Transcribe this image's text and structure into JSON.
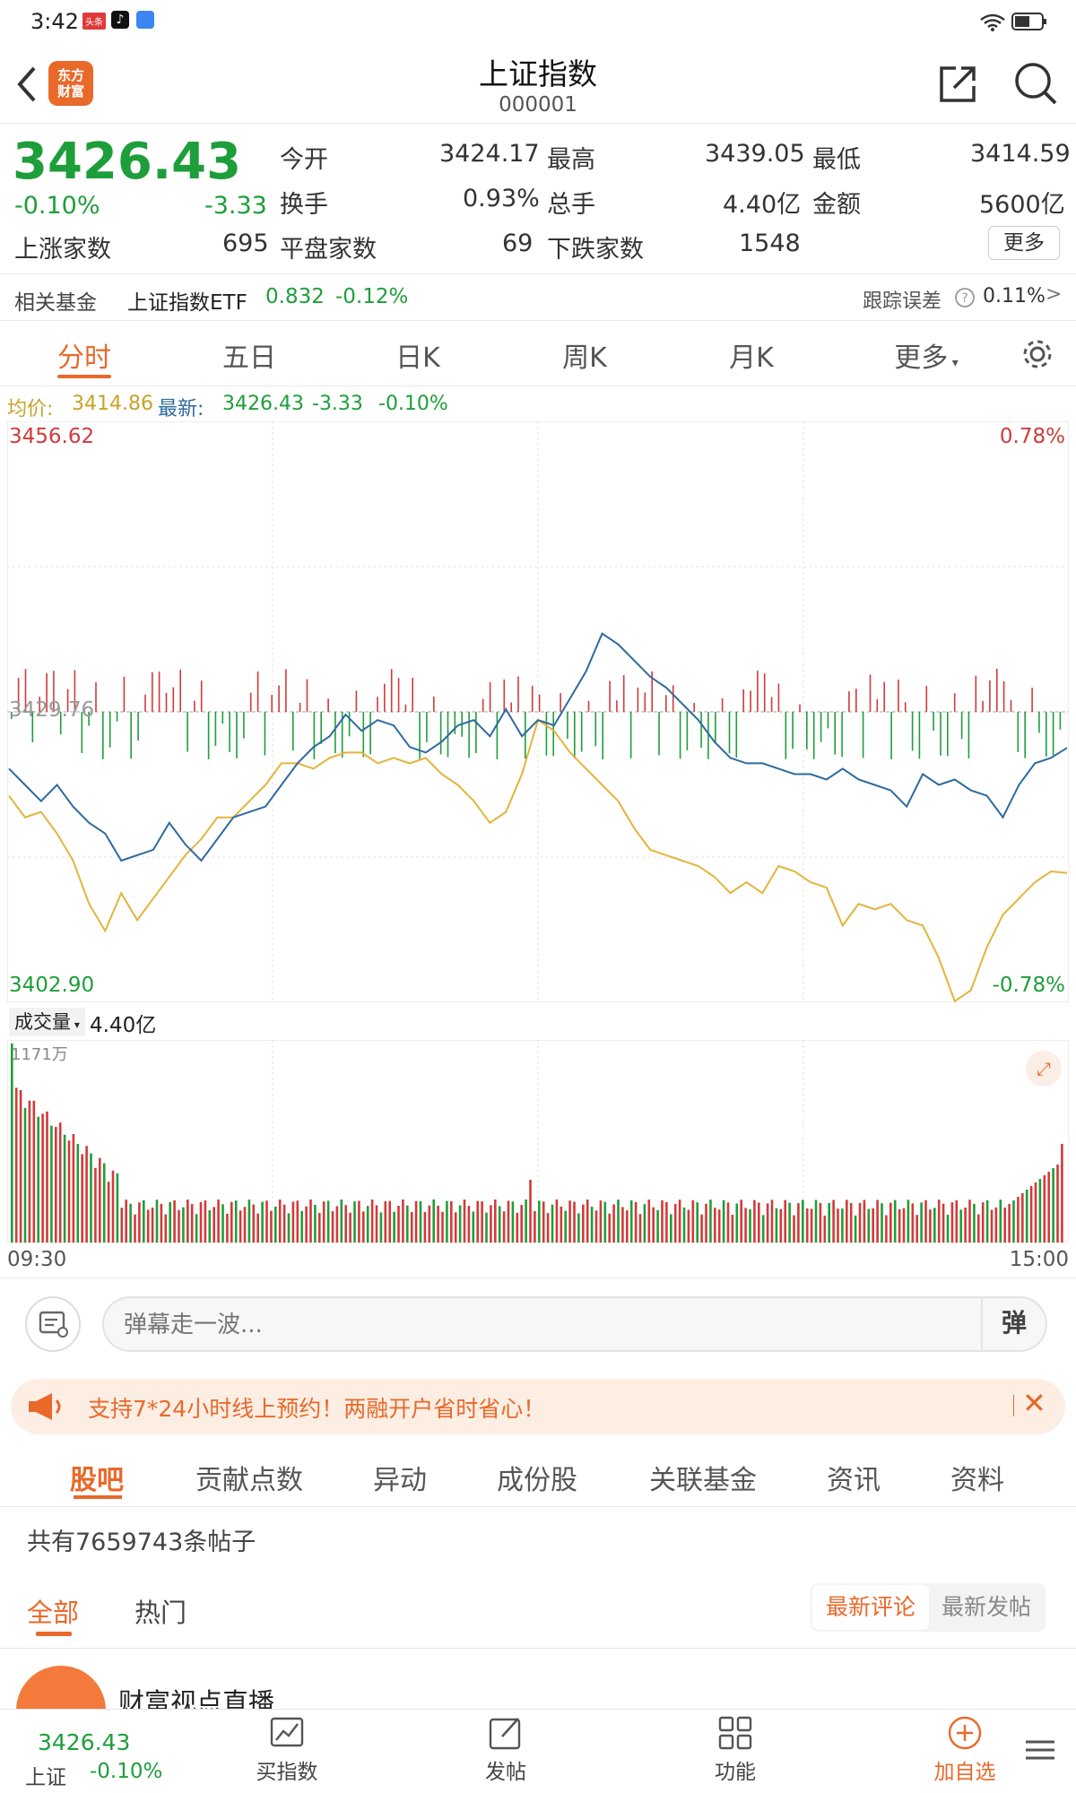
{
  "status_bar": {
    "time": "3:42",
    "app_badge": "头条"
  },
  "header": {
    "logo_text": "东方\n财富",
    "title": "上证指数",
    "code": "000001"
  },
  "quote": {
    "price": "3426.43",
    "pct": "-0.10%",
    "change": "-3.33",
    "open_label": "今开",
    "open": "3424.17",
    "high_label": "最高",
    "high": "3439.05",
    "low_label": "最低",
    "low": "3414.59",
    "turnover_label": "换手",
    "turnover": "0.93%",
    "volume_label": "总手",
    "volume": "4.40亿",
    "amount_label": "金额",
    "amount": "5600亿",
    "up_label": "上涨家数",
    "up": "695",
    "flat_label": "平盘家数",
    "flat": "69",
    "down_label": "下跌家数",
    "down": "1548",
    "more": "更多"
  },
  "fund": {
    "label": "相关基金",
    "name": "上证指数ETF",
    "price": "0.832",
    "pct": "-0.12%",
    "track_label": "跟踪误差",
    "track": "0.11%"
  },
  "tabs": [
    "分时",
    "五日",
    "日K",
    "周K",
    "月K",
    "更多"
  ],
  "legend": {
    "avg_label": "均价:",
    "avg": "3414.86",
    "last_label": "最新:",
    "last": "3426.43",
    "chg": "-3.33",
    "pct": "-0.10%"
  },
  "axis": {
    "ymax": "3456.62",
    "ymin": "3402.90",
    "ymid": "3429.76",
    "pmax": "0.78%",
    "pmin": "-0.78%",
    "t_start": "09:30",
    "t_end": "15:00"
  },
  "vol": {
    "label": "成交量",
    "total": "4.40亿",
    "max": "1171万"
  },
  "danmu": {
    "placeholder": "弹幕走一波...",
    "send": "弹"
  },
  "ad": {
    "text": "支持7*24小时线上预约！两融开户省时省心！"
  },
  "lower_tabs": [
    "股吧",
    "贡献点数",
    "异动",
    "成份股",
    "关联基金",
    "资讯",
    "资料"
  ],
  "posts": {
    "count_text": "共有7659743条帖子",
    "filter_all": "全部",
    "filter_hot": "热门",
    "sort_reply": "最新评论",
    "sort_new": "最新发帖",
    "item_name": "财富视点直播"
  },
  "bottom": {
    "price": "3426.43",
    "name": "上证",
    "pct": "-0.10%",
    "buy": "买指数",
    "post": "发帖",
    "func": "功能",
    "add": "加自选"
  },
  "colors": {
    "up": "#d23a3a",
    "down": "#1e9e3a",
    "accent": "#e8692a",
    "price_line": "#2d6a9f",
    "avg_line": "#e3b43a"
  },
  "chart_data": {
    "type": "line",
    "x_start": "09:30",
    "x_end": "15:00",
    "ylim": [
      3402.9,
      3456.62
    ],
    "series": [
      {
        "name": "最新",
        "values": [
          3424.5,
          3423.0,
          3421.5,
          3423.0,
          3421.0,
          3419.5,
          3418.5,
          3416.0,
          3416.5,
          3417.0,
          3419.5,
          3417.5,
          3416.0,
          3418.0,
          3420.0,
          3420.5,
          3421.0,
          3423.0,
          3425.0,
          3426.5,
          3427.5,
          3429.5,
          3428.0,
          3429.0,
          3428.5,
          3426.5,
          3426.0,
          3427.0,
          3428.5,
          3429.0,
          3427.5,
          3430.0,
          3427.5,
          3429.0,
          3428.5,
          3431.0,
          3433.5,
          3437.0,
          3436.0,
          3434.5,
          3433.0,
          3432.0,
          3430.5,
          3429.0,
          3427.0,
          3425.5,
          3425.0,
          3425.0,
          3424.5,
          3424.0,
          3424.0,
          3423.5,
          3424.5,
          3423.5,
          3423.0,
          3422.5,
          3421.0,
          3424.0,
          3423.0,
          3423.5,
          3422.5,
          3422.0,
          3420.0,
          3423.0,
          3425.0,
          3425.5,
          3426.43
        ]
      },
      {
        "name": "均价",
        "values": [
          3422.0,
          3420.0,
          3420.5,
          3418.5,
          3416.0,
          3412.0,
          3409.5,
          3413.0,
          3410.5,
          3412.5,
          3414.5,
          3416.5,
          3418.0,
          3420.0,
          3420.0,
          3421.5,
          3423.0,
          3425.0,
          3425.0,
          3424.5,
          3425.5,
          3426.0,
          3426.0,
          3425.0,
          3425.5,
          3425.0,
          3425.5,
          3424.0,
          3423.0,
          3421.5,
          3419.5,
          3420.5,
          3424.0,
          3429.0,
          3428.0,
          3426.0,
          3424.5,
          3423.0,
          3421.5,
          3419.0,
          3417.0,
          3416.5,
          3416.0,
          3415.5,
          3414.5,
          3413.0,
          3414.0,
          3413.0,
          3415.5,
          3415.0,
          3414.0,
          3413.5,
          3410.0,
          3412.0,
          3411.5,
          3412.0,
          3410.5,
          3410.0,
          3407.0,
          3403.0,
          3404.0,
          3408.0,
          3411.0,
          3412.5,
          3414.0,
          3415.0,
          3414.86
        ]
      }
    ],
    "volume": {
      "max": "1171万",
      "total": "4.40亿"
    }
  }
}
